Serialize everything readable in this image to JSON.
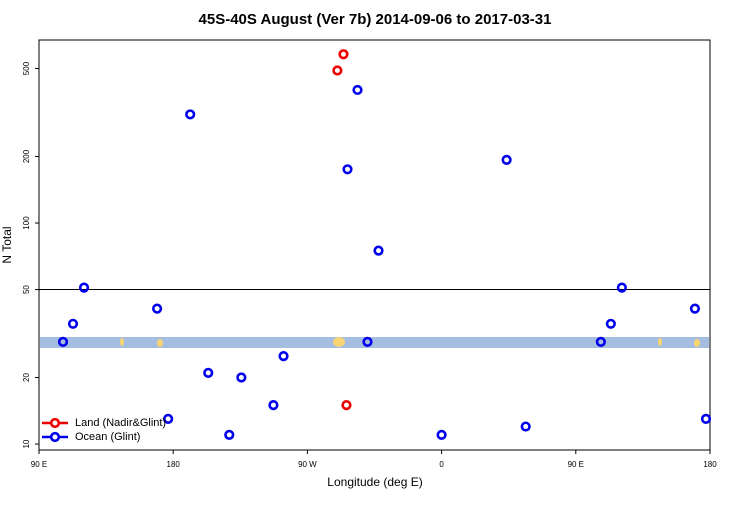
{
  "chart_data": {
    "type": "scatter",
    "title": "45S-40S August (Ver 7b)   2014-09-06 to 2017-03-31",
    "x_label": "Longitude (deg E)",
    "y_label": "N Total",
    "log_y": true,
    "xlim": [
      90,
      540
    ],
    "ylim": [
      9.4,
      673
    ],
    "xticks": [
      {
        "value": 90,
        "label": "90 E"
      },
      {
        "value": 180,
        "label": "180"
      },
      {
        "value": 270,
        "label": "90 W"
      },
      {
        "value": 360,
        "label": "0"
      },
      {
        "value": 450,
        "label": "90 E"
      },
      {
        "value": 540,
        "label": "180"
      }
    ],
    "yticks": [
      10,
      20,
      50,
      100,
      200,
      500
    ],
    "reference_line": 50,
    "legend_position": "bottom-left",
    "series": [
      {
        "name": "Land (Nadir&Glint)",
        "color": "#ee0000",
        "x": [
          290.1,
          294.2,
          296.2
        ],
        "values": [
          490,
          580,
          15
        ]
      },
      {
        "name": "Ocean (Glint)",
        "color": "#0000ee",
        "x": [
          106.1,
          112.8,
          120.2,
          169.2,
          176.6,
          191.4,
          203.5,
          217.6,
          225.7,
          247.2,
          254.0,
          296.9,
          303.6,
          310.3,
          317.7,
          360,
          403.6,
          416.4,
          466.8,
          473.5,
          480.9,
          529.9,
          537.3
        ],
        "values": [
          29,
          35,
          51,
          41,
          13,
          310,
          21,
          11,
          20,
          15,
          25,
          175,
          400,
          29,
          75,
          11,
          193,
          12,
          29,
          35,
          51,
          41,
          13
        ]
      }
    ]
  }
}
